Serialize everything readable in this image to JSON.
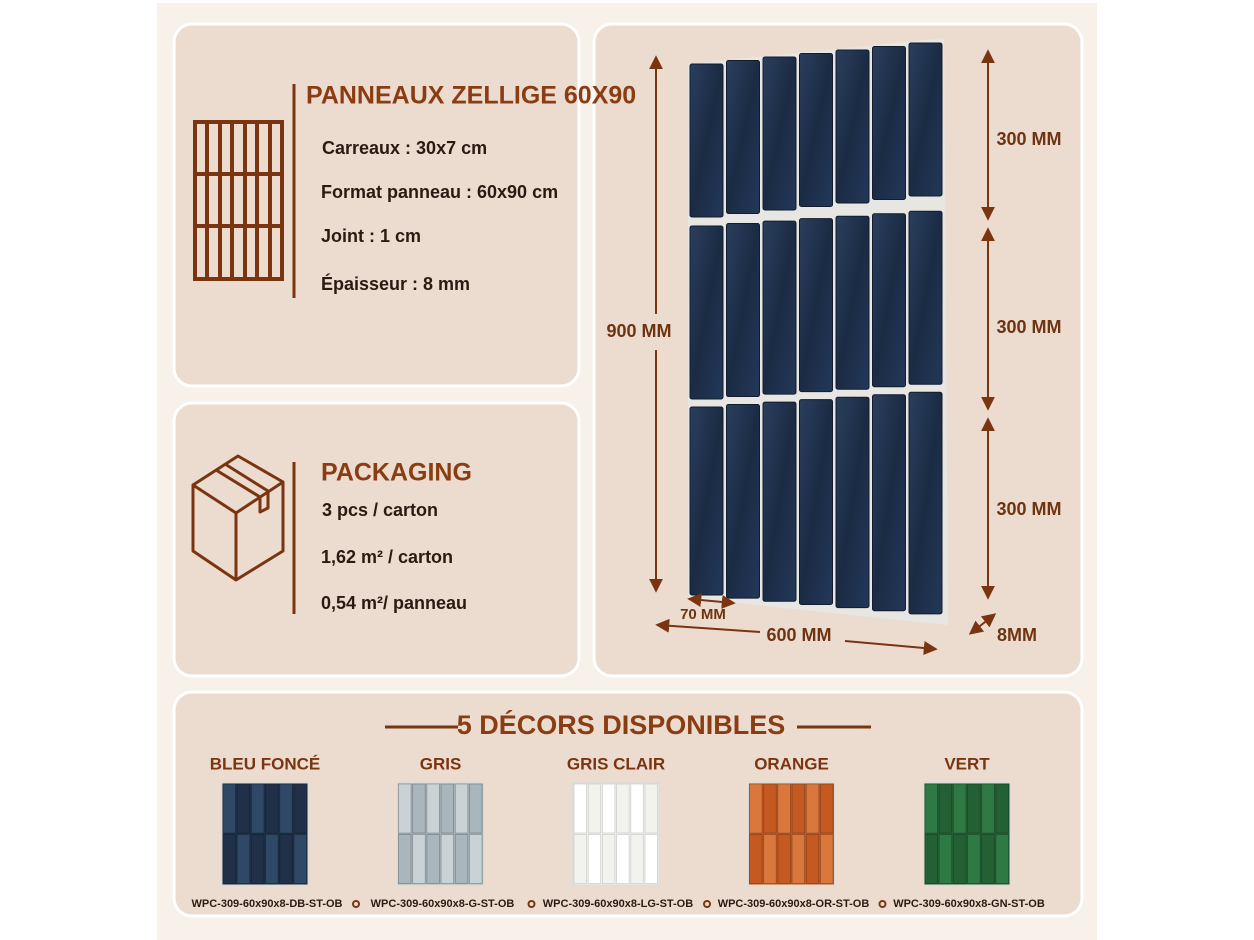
{
  "specs": {
    "title": "PANNEAUX ZELLIGE 60X90",
    "items": [
      "Carreaux : 30x7 cm",
      "Format panneau : 60x90 cm",
      "Joint : 1 cm",
      "Épaisseur  : 8 mm"
    ]
  },
  "packaging": {
    "title": "PACKAGING",
    "items": [
      "3 pcs / carton",
      "1,62 m² / carton",
      "0,54 m²/ panneau"
    ]
  },
  "dimensions": {
    "height_total": "900 MM",
    "section_heights": [
      "300 MM",
      "300 MM",
      "300 MM"
    ],
    "tile_width": "70 MM",
    "width_total": "600 MM",
    "thickness": "8MM"
  },
  "decors": {
    "title": "5 DÉCORS DISPONIBLES",
    "items": [
      {
        "name": "BLEU FONCÉ",
        "code": "WPC-309-60x90x8-DB-ST-OB"
      },
      {
        "name": "GRIS",
        "code": "WPC-309-60x90x8-G-ST-OB"
      },
      {
        "name": "GRIS CLAIR",
        "code": "WPC-309-60x90x8-LG-ST-OB"
      },
      {
        "name": "ORANGE",
        "code": "WPC-309-60x90x8-OR-ST-OB"
      },
      {
        "name": "VERT",
        "code": "WPC-309-60x90x8-GN-ST-OB"
      }
    ]
  }
}
